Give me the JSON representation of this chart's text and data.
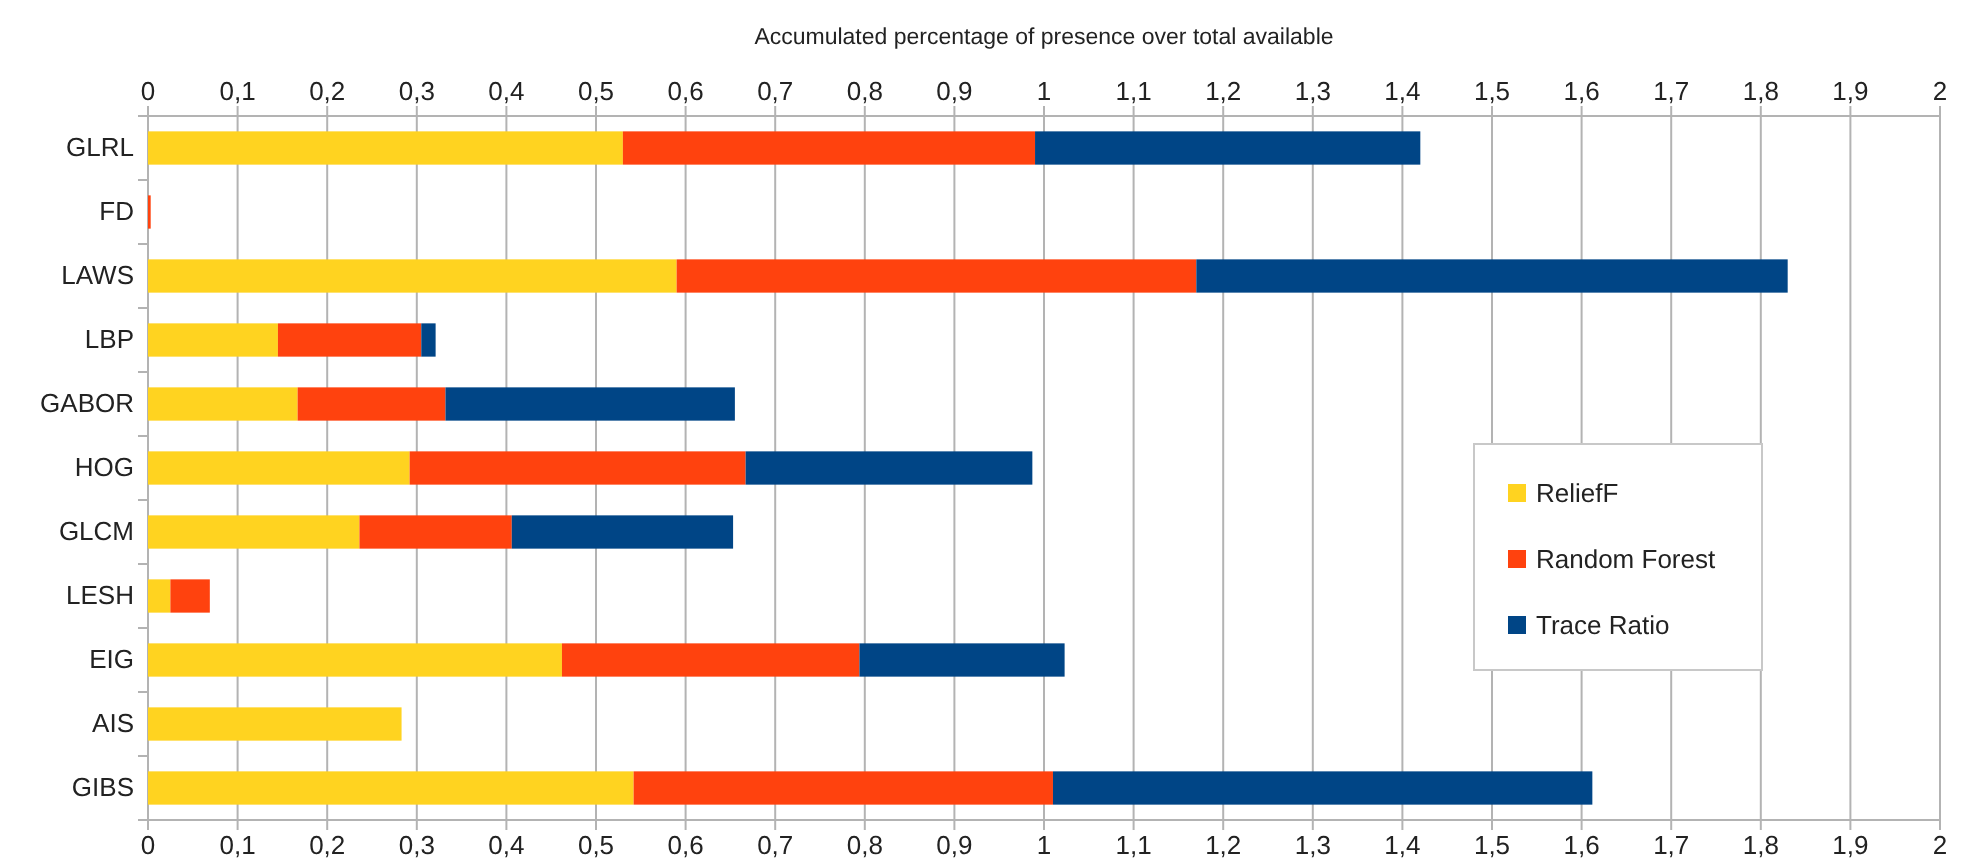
{
  "chart_data": {
    "type": "bar",
    "orientation": "horizontal",
    "stacked": true,
    "x2label": "Accumulated percentage of presence over total available",
    "categories": [
      "GLRL",
      "FD",
      "LAWS",
      "LBP",
      "GABOR",
      "HOG",
      "GLCM",
      "LESH",
      "EIG",
      "AIS",
      "GIBS"
    ],
    "series": [
      {
        "name": "ReliefF",
        "color": "#ffd320",
        "values": [
          0.53,
          0,
          0.59,
          0.145,
          0.167,
          0.292,
          0.236,
          0.025,
          0.462,
          0.283,
          0.542
        ]
      },
      {
        "name": "Random Forest",
        "color": "#ff420e",
        "values": [
          0.46,
          0.003,
          0.58,
          0.16,
          0.165,
          0.375,
          0.17,
          0.044,
          0.332,
          0,
          0.468
        ]
      },
      {
        "name": "Trace Ratio",
        "color": "#004586",
        "values": [
          0.43,
          0,
          0.66,
          0.016,
          0.323,
          0.32,
          0.247,
          0,
          0.229,
          0,
          0.602
        ]
      }
    ],
    "xlim": [
      0,
      2
    ],
    "xticks": [
      0,
      {
        "value": 0.1,
        "label": "0,1"
      },
      {
        "value": 0.2,
        "label": "0,2"
      },
      {
        "value": 0.3,
        "label": "0,3"
      },
      {
        "value": 0.4,
        "label": "0,4"
      },
      {
        "value": 0.5,
        "label": "0,5"
      },
      {
        "value": 0.6,
        "label": "0,6"
      },
      {
        "value": 0.7,
        "label": "0,7"
      },
      {
        "value": 0.8,
        "label": "0,8"
      },
      {
        "value": 0.9,
        "label": "0,9"
      },
      1,
      {
        "value": 1.1,
        "label": "1,1"
      },
      {
        "value": 1.2,
        "label": "1,2"
      },
      {
        "value": 1.3,
        "label": "1,3"
      },
      {
        "value": 1.4,
        "label": "1,4"
      },
      {
        "value": 1.5,
        "label": "1,5"
      },
      {
        "value": 1.6,
        "label": "1,6"
      },
      {
        "value": 1.7,
        "label": "1,7"
      },
      {
        "value": 1.8,
        "label": "1,8"
      },
      {
        "value": 1.9,
        "label": "1,9"
      },
      2
    ],
    "x2lim": [
      0,
      2
    ],
    "x2ticks": [
      0,
      {
        "value": 0.1,
        "label": "0,1"
      },
      {
        "value": 0.2,
        "label": "0,2"
      },
      {
        "value": 0.3,
        "label": "0,3"
      },
      {
        "value": 0.4,
        "label": "0,4"
      },
      {
        "value": 0.5,
        "label": "0,5"
      },
      {
        "value": 0.6,
        "label": "0,6"
      },
      {
        "value": 0.7,
        "label": "0,7"
      },
      {
        "value": 0.8,
        "label": "0,8"
      },
      {
        "value": 0.9,
        "label": "0,9"
      },
      1,
      {
        "value": 1.1,
        "label": "1,1"
      },
      {
        "value": 1.2,
        "label": "1,2"
      },
      {
        "value": 1.3,
        "label": "1,3"
      },
      {
        "value": 1.4,
        "label": "1,4"
      },
      {
        "value": 1.5,
        "label": "1,5"
      },
      {
        "value": 1.6,
        "label": "1,6"
      },
      {
        "value": 1.7,
        "label": "1,7"
      },
      {
        "value": 1.8,
        "label": "1,8"
      },
      {
        "value": 1.9,
        "label": "1,9"
      },
      2
    ],
    "grid": "x",
    "legend": "right"
  }
}
